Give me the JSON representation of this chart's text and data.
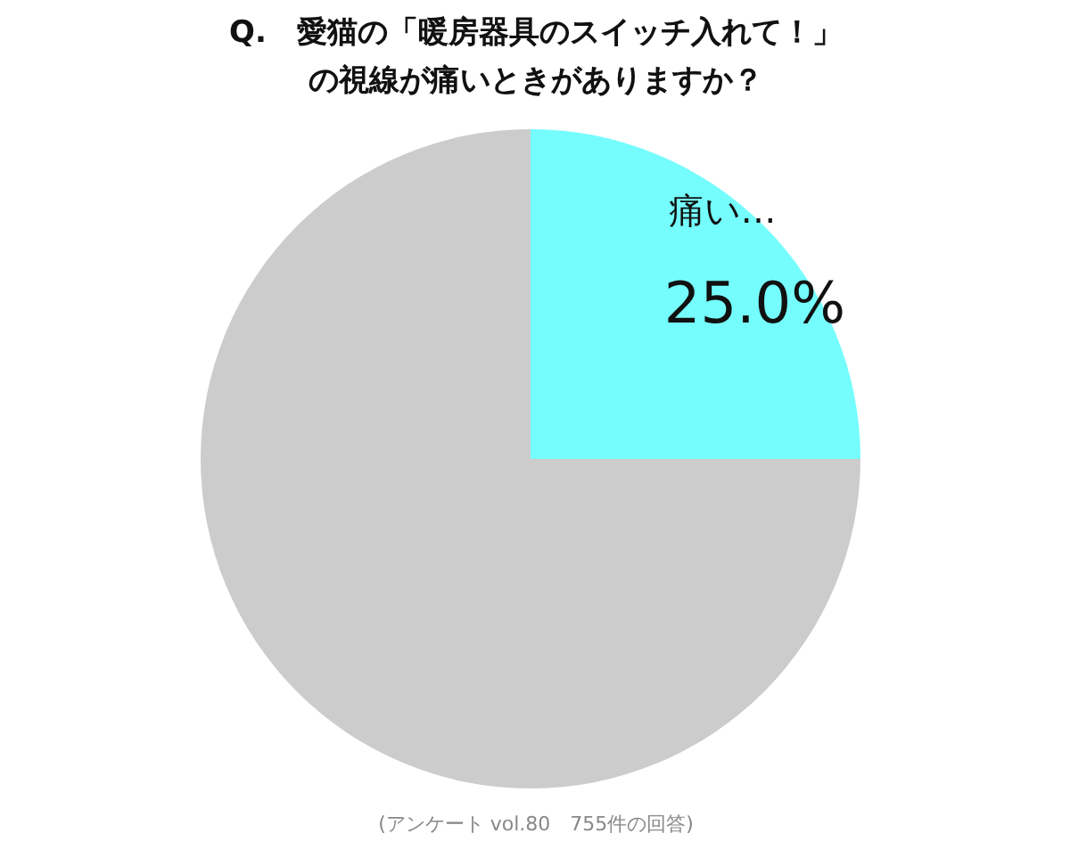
{
  "chart_data": {
    "type": "pie",
    "title": "Q.　愛猫の「暖房器具のスイッチ入れて！」の視線が痛いときがありますか？",
    "categories": [
      "痛い…",
      null
    ],
    "values": [
      25,
      75
    ],
    "colors": [
      "#75fdfd",
      "#cccccc"
    ],
    "value_labels": [
      "25.0%",
      null
    ],
    "annotations": [
      "(アンケート vol.80　755件の回答)"
    ]
  }
}
